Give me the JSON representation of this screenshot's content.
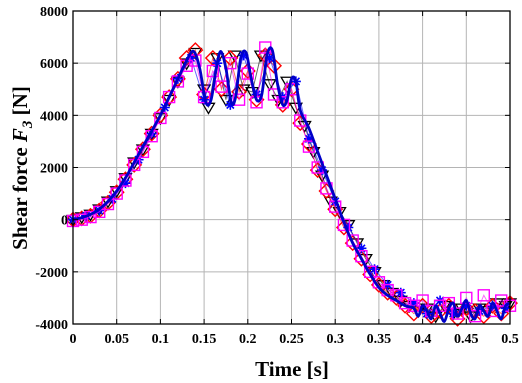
{
  "chart_data": {
    "type": "line",
    "xlabel": "Time [s]",
    "ylabel": {
      "prefix": "Shear force ",
      "symbol": "F",
      "subscript": "3",
      "unit": " [N]"
    },
    "xlim": [
      0,
      0.5
    ],
    "ylim": [
      -4000,
      8000
    ],
    "xticks": [
      0,
      0.05,
      0.1,
      0.15,
      0.2,
      0.25,
      0.3,
      0.35,
      0.4,
      0.45,
      0.5
    ],
    "xtick_labels": [
      "0",
      "0.05",
      "0.1",
      "0.15",
      "0.2",
      "0.25",
      "0.3",
      "0.35",
      "0.4",
      "0.45",
      "0.5"
    ],
    "yticks": [
      -4000,
      -2000,
      0,
      2000,
      4000,
      6000,
      8000
    ],
    "ytick_labels": [
      "-4000",
      "-2000",
      "0",
      "2000",
      "4000",
      "6000",
      "8000"
    ],
    "grid": true,
    "series": [
      {
        "marker": "triangle-down",
        "color": "#000000",
        "x": [
          0.0,
          0.01,
          0.02,
          0.03,
          0.04,
          0.05,
          0.06,
          0.07,
          0.08,
          0.09,
          0.1,
          0.11,
          0.12,
          0.13,
          0.14,
          0.15,
          0.155,
          0.165,
          0.175,
          0.185,
          0.195,
          0.205,
          0.215,
          0.225,
          0.235,
          0.245,
          0.255,
          0.265,
          0.275,
          0.285,
          0.295,
          0.305,
          0.315,
          0.325,
          0.335,
          0.345,
          0.355,
          0.365,
          0.375,
          0.385,
          0.395,
          0.405,
          0.415,
          0.425,
          0.435,
          0.445,
          0.455,
          0.465,
          0.475,
          0.485,
          0.495,
          0.5
        ],
        "y": [
          0,
          100,
          200,
          400,
          700,
          1100,
          1600,
          2200,
          2700,
          3300,
          3900,
          4600,
          5300,
          6000,
          6400,
          5000,
          4300,
          6200,
          4600,
          6300,
          5000,
          4900,
          6300,
          5200,
          4600,
          5300,
          4300,
          3600,
          2600,
          1700,
          700,
          300,
          -200,
          -900,
          -1500,
          -2000,
          -2500,
          -2800,
          -3100,
          -3300,
          -3500,
          -3400,
          -3700,
          -3300,
          -3600,
          -3400,
          -3700,
          -3400,
          -3500,
          -3200,
          -3300,
          -3200
        ]
      },
      {
        "marker": "diamond",
        "color": "#ff0000",
        "x": [
          0.0,
          0.01,
          0.02,
          0.03,
          0.04,
          0.05,
          0.06,
          0.07,
          0.08,
          0.09,
          0.1,
          0.11,
          0.12,
          0.13,
          0.14,
          0.15,
          0.16,
          0.17,
          0.18,
          0.19,
          0.2,
          0.21,
          0.22,
          0.23,
          0.24,
          0.25,
          0.26,
          0.27,
          0.28,
          0.29,
          0.3,
          0.31,
          0.32,
          0.33,
          0.34,
          0.35,
          0.36,
          0.37,
          0.38,
          0.39,
          0.4,
          0.41,
          0.42,
          0.43,
          0.44,
          0.45,
          0.46,
          0.47,
          0.48,
          0.49,
          0.5
        ],
        "y": [
          0,
          50,
          150,
          350,
          650,
          1050,
          1550,
          2100,
          2700,
          3300,
          4000,
          4700,
          5400,
          6200,
          6500,
          4800,
          6200,
          5000,
          6200,
          4900,
          5700,
          4600,
          6300,
          5900,
          4400,
          5000,
          3700,
          2900,
          1900,
          1100,
          400,
          -300,
          -900,
          -1500,
          -2100,
          -2500,
          -2800,
          -3000,
          -3300,
          -3600,
          -3300,
          -3700,
          -3500,
          -3300,
          -3800,
          -3400,
          -3500,
          -3700,
          -3300,
          -3600,
          -3200
        ]
      },
      {
        "marker": "asterisk",
        "color": "#0000ff",
        "x": [
          0.0,
          0.015,
          0.03,
          0.045,
          0.06,
          0.075,
          0.09,
          0.105,
          0.12,
          0.135,
          0.15,
          0.165,
          0.18,
          0.195,
          0.21,
          0.225,
          0.24,
          0.255,
          0.27,
          0.285,
          0.3,
          0.315,
          0.33,
          0.345,
          0.36,
          0.375,
          0.39,
          0.405,
          0.42,
          0.435,
          0.45,
          0.465,
          0.48,
          0.495
        ],
        "y": [
          0,
          150,
          350,
          800,
          1400,
          2300,
          3300,
          4300,
          5400,
          6200,
          4600,
          6000,
          4400,
          6300,
          4800,
          6200,
          4700,
          5300,
          3100,
          1900,
          700,
          -300,
          -1100,
          -1900,
          -2500,
          -2800,
          -3200,
          -3600,
          -3100,
          -3600,
          -3300,
          -3500,
          -3300,
          -3400
        ]
      },
      {
        "marker": "square",
        "color": "#ff00ff",
        "x": [
          0.0,
          0.01,
          0.02,
          0.03,
          0.04,
          0.05,
          0.06,
          0.07,
          0.08,
          0.09,
          0.1,
          0.11,
          0.12,
          0.13,
          0.14,
          0.15,
          0.16,
          0.17,
          0.18,
          0.19,
          0.2,
          0.21,
          0.22,
          0.23,
          0.24,
          0.25,
          0.26,
          0.27,
          0.28,
          0.29,
          0.3,
          0.31,
          0.32,
          0.33,
          0.34,
          0.35,
          0.36,
          0.37,
          0.38,
          0.39,
          0.4,
          0.41,
          0.42,
          0.43,
          0.44,
          0.45,
          0.46,
          0.47,
          0.48,
          0.49,
          0.5
        ],
        "y": [
          -50,
          0,
          100,
          300,
          600,
          1000,
          1500,
          2100,
          2600,
          3200,
          3900,
          4700,
          5300,
          5900,
          6100,
          4700,
          5700,
          5100,
          6000,
          4600,
          5600,
          4500,
          6600,
          4800,
          4500,
          5000,
          3800,
          2800,
          2000,
          1200,
          500,
          -200,
          -800,
          -1400,
          -2000,
          -2400,
          -2700,
          -2900,
          -3200,
          -3300,
          -3100,
          -3500,
          -3300,
          -3200,
          -3600,
          -3000,
          -3700,
          -2900,
          -3500,
          -3100,
          -3300
        ]
      },
      {
        "line": true,
        "color": "#0000c8",
        "x": [
          0.0,
          0.01,
          0.02,
          0.03,
          0.04,
          0.05,
          0.06,
          0.07,
          0.08,
          0.09,
          0.1,
          0.11,
          0.12,
          0.13,
          0.138,
          0.145,
          0.152,
          0.158,
          0.164,
          0.169,
          0.175,
          0.181,
          0.186,
          0.192,
          0.198,
          0.204,
          0.21,
          0.216,
          0.222,
          0.228,
          0.234,
          0.24,
          0.245,
          0.25,
          0.255,
          0.26,
          0.27,
          0.28,
          0.29,
          0.3,
          0.31,
          0.32,
          0.33,
          0.34,
          0.35,
          0.36,
          0.37,
          0.38,
          0.39,
          0.395,
          0.4,
          0.405,
          0.41,
          0.415,
          0.42,
          0.425,
          0.43,
          0.435,
          0.44,
          0.445,
          0.45,
          0.455,
          0.46,
          0.465,
          0.47,
          0.475,
          0.48,
          0.485,
          0.49,
          0.495,
          0.5
        ],
        "y": [
          0,
          80,
          200,
          400,
          700,
          1100,
          1600,
          2200,
          2800,
          3400,
          4000,
          4700,
          5400,
          6100,
          6450,
          5800,
          4500,
          4600,
          5800,
          6450,
          5800,
          4500,
          4700,
          6200,
          6400,
          5400,
          4600,
          4800,
          6300,
          6500,
          5200,
          4400,
          4600,
          5400,
          5300,
          4200,
          3500,
          2600,
          1700,
          800,
          -100,
          -900,
          -1500,
          -2100,
          -2600,
          -2900,
          -3100,
          -3300,
          -3400,
          -3700,
          -3300,
          -3500,
          -3800,
          -3300,
          -3600,
          -3900,
          -3400,
          -3200,
          -3700,
          -3400,
          -3100,
          -3600,
          -3800,
          -3300,
          -3500,
          -3700,
          -3200,
          -3500,
          -3800,
          -3300,
          -3200
        ]
      }
    ]
  }
}
